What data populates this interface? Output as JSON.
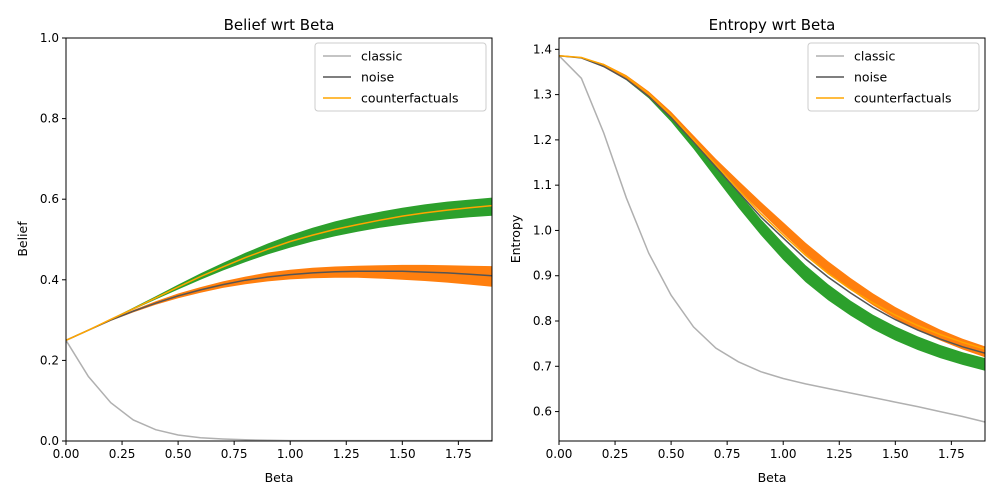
{
  "colors": {
    "classic": "#b0b0b0",
    "noise": "#555555",
    "counterfactuals": "#ffa500",
    "band_upper": "#2ca02c",
    "band_lower": "#ff7f0e"
  },
  "chart_data": [
    {
      "type": "line",
      "title": "Belief wrt Beta",
      "xlabel": "Beta",
      "ylabel": "Belief",
      "xlim": [
        0,
        1.9
      ],
      "ylim": [
        0,
        1.0
      ],
      "xticks": [
        "0.00",
        "0.25",
        "0.50",
        "0.75",
        "1.00",
        "1.25",
        "1.50",
        "1.75"
      ],
      "yticks": [
        "0.0",
        "0.2",
        "0.4",
        "0.6",
        "0.8",
        "1.0"
      ],
      "grid": false,
      "legend": "top-right",
      "x": [
        0,
        0.1,
        0.2,
        0.3,
        0.4,
        0.5,
        0.6,
        0.7,
        0.8,
        0.9,
        1.0,
        1.1,
        1.2,
        1.3,
        1.4,
        1.5,
        1.6,
        1.7,
        1.8,
        1.9
      ],
      "series": [
        {
          "name": "classic",
          "color_key": "classic",
          "values": [
            0.25,
            0.16,
            0.095,
            0.052,
            0.028,
            0.015,
            0.008,
            0.005,
            0.003,
            0.002,
            0.001,
            0.001,
            0.001,
            0.001,
            0.001,
            0.001,
            0.001,
            0.001,
            0.001,
            0.001
          ]
        },
        {
          "name": "noise",
          "color_key": "noise",
          "values": [
            0.25,
            0.275,
            0.3,
            0.322,
            0.342,
            0.36,
            0.375,
            0.388,
            0.399,
            0.407,
            0.413,
            0.417,
            0.42,
            0.421,
            0.421,
            0.421,
            0.419,
            0.417,
            0.414,
            0.41
          ]
        },
        {
          "name": "counterfactuals",
          "color_key": "counterfactuals",
          "values": [
            0.25,
            0.275,
            0.302,
            0.328,
            0.355,
            0.382,
            0.408,
            0.432,
            0.455,
            0.476,
            0.495,
            0.511,
            0.525,
            0.537,
            0.548,
            0.558,
            0.566,
            0.573,
            0.579,
            0.584
          ]
        }
      ],
      "bands": [
        {
          "color_key": "band_upper",
          "lower": [
            0.25,
            0.275,
            0.301,
            0.326,
            0.351,
            0.376,
            0.4,
            0.423,
            0.444,
            0.463,
            0.48,
            0.495,
            0.508,
            0.519,
            0.529,
            0.537,
            0.544,
            0.55,
            0.555,
            0.559
          ],
          "upper": [
            0.25,
            0.276,
            0.303,
            0.331,
            0.359,
            0.388,
            0.416,
            0.442,
            0.467,
            0.49,
            0.511,
            0.529,
            0.545,
            0.558,
            0.569,
            0.579,
            0.587,
            0.594,
            0.599,
            0.604
          ]
        },
        {
          "color_key": "band_lower",
          "lower": [
            0.25,
            0.274,
            0.298,
            0.319,
            0.338,
            0.354,
            0.368,
            0.38,
            0.389,
            0.396,
            0.401,
            0.404,
            0.405,
            0.405,
            0.403,
            0.4,
            0.397,
            0.393,
            0.388,
            0.383
          ],
          "upper": [
            0.25,
            0.276,
            0.302,
            0.325,
            0.347,
            0.366,
            0.382,
            0.396,
            0.408,
            0.418,
            0.425,
            0.43,
            0.433,
            0.435,
            0.436,
            0.437,
            0.437,
            0.436,
            0.435,
            0.434
          ]
        }
      ]
    },
    {
      "type": "line",
      "title": "Entropy wrt Beta",
      "xlabel": "Beta",
      "ylabel": "Entropy",
      "xlim": [
        0,
        1.9
      ],
      "ylim": [
        0.535,
        1.425
      ],
      "xticks": [
        "0.00",
        "0.25",
        "0.50",
        "0.75",
        "1.00",
        "1.25",
        "1.50",
        "1.75"
      ],
      "yticks": [
        "0.6",
        "0.7",
        "0.8",
        "0.9",
        "1.0",
        "1.1",
        "1.2",
        "1.3",
        "1.4"
      ],
      "grid": false,
      "legend": "top-right",
      "x": [
        0,
        0.1,
        0.2,
        0.3,
        0.4,
        0.5,
        0.6,
        0.7,
        0.8,
        0.9,
        1.0,
        1.1,
        1.2,
        1.3,
        1.4,
        1.5,
        1.6,
        1.7,
        1.8,
        1.9
      ],
      "series": [
        {
          "name": "classic",
          "color_key": "classic",
          "values": [
            1.386,
            1.336,
            1.215,
            1.072,
            0.95,
            0.857,
            0.787,
            0.74,
            0.71,
            0.688,
            0.673,
            0.661,
            0.651,
            0.641,
            0.631,
            0.621,
            0.611,
            0.6,
            0.589,
            0.577
          ]
        },
        {
          "name": "noise",
          "color_key": "noise",
          "values": [
            1.386,
            1.381,
            1.362,
            1.334,
            1.296,
            1.249,
            1.196,
            1.14,
            1.085,
            1.03,
            0.983,
            0.937,
            0.897,
            0.862,
            0.83,
            0.803,
            0.78,
            0.76,
            0.743,
            0.729
          ]
        },
        {
          "name": "counterfactuals",
          "color_key": "counterfactuals",
          "values": [
            1.386,
            1.382,
            1.366,
            1.34,
            1.302,
            1.255,
            1.2,
            1.145,
            1.09,
            1.037,
            0.99,
            0.945,
            0.905,
            0.87,
            0.84,
            0.813,
            0.79,
            0.77,
            0.753,
            0.738
          ]
        }
      ],
      "bands": [
        {
          "color_key": "band_upper",
          "lower": [
            1.386,
            1.38,
            1.361,
            1.332,
            1.292,
            1.24,
            1.18,
            1.115,
            1.05,
            0.99,
            0.935,
            0.886,
            0.846,
            0.812,
            0.782,
            0.757,
            0.736,
            0.718,
            0.703,
            0.69
          ],
          "upper": [
            1.386,
            1.381,
            1.365,
            1.338,
            1.302,
            1.258,
            1.205,
            1.145,
            1.084,
            1.025,
            0.972,
            0.923,
            0.881,
            0.845,
            0.814,
            0.788,
            0.766,
            0.747,
            0.731,
            0.718
          ]
        },
        {
          "color_key": "band_lower",
          "lower": [
            1.386,
            1.381,
            1.36,
            1.333,
            1.294,
            1.248,
            1.196,
            1.143,
            1.09,
            1.041,
            0.993,
            0.947,
            0.906,
            0.869,
            0.835,
            0.805,
            0.779,
            0.757,
            0.737,
            0.72
          ],
          "upper": [
            1.386,
            1.382,
            1.368,
            1.343,
            1.307,
            1.262,
            1.21,
            1.158,
            1.11,
            1.063,
            1.018,
            0.973,
            0.932,
            0.895,
            0.861,
            0.831,
            0.805,
            0.781,
            0.761,
            0.744
          ]
        }
      ]
    }
  ]
}
